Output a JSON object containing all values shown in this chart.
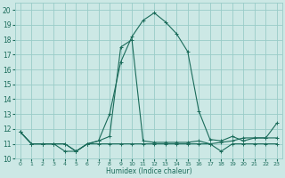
{
  "xlabel": "Humidex (Indice chaleur)",
  "background_color": "#cce8e5",
  "grid_color": "#99ccc8",
  "line_color": "#1a6b5a",
  "xlim": [
    -0.5,
    23.5
  ],
  "ylim": [
    10,
    20.5
  ],
  "yticks": [
    10,
    11,
    12,
    13,
    14,
    15,
    16,
    17,
    18,
    19,
    20
  ],
  "xticks": [
    0,
    1,
    2,
    3,
    4,
    5,
    6,
    7,
    8,
    9,
    10,
    11,
    12,
    13,
    14,
    15,
    16,
    17,
    18,
    19,
    20,
    21,
    22,
    23
  ],
  "series": [
    [
      11.8,
      11.0,
      11.0,
      11.0,
      11.0,
      10.5,
      11.0,
      11.2,
      13.0,
      16.5,
      18.2,
      19.3,
      19.8,
      19.2,
      18.4,
      17.2,
      13.2,
      11.3,
      11.2,
      11.5,
      11.2,
      11.4,
      11.4,
      12.4
    ],
    [
      11.8,
      11.0,
      11.0,
      11.0,
      10.5,
      10.5,
      11.0,
      11.2,
      11.5,
      17.5,
      18.0,
      11.2,
      11.1,
      11.1,
      11.1,
      11.1,
      11.2,
      11.0,
      11.1,
      11.2,
      11.4,
      11.4,
      11.4,
      11.4
    ],
    [
      11.8,
      11.0,
      11.0,
      11.0,
      11.0,
      10.5,
      11.0,
      11.0,
      11.0,
      11.0,
      11.0,
      11.0,
      11.0,
      11.0,
      11.0,
      11.0,
      11.0,
      11.0,
      10.5,
      11.0,
      11.0,
      11.0,
      11.0,
      11.0
    ]
  ]
}
